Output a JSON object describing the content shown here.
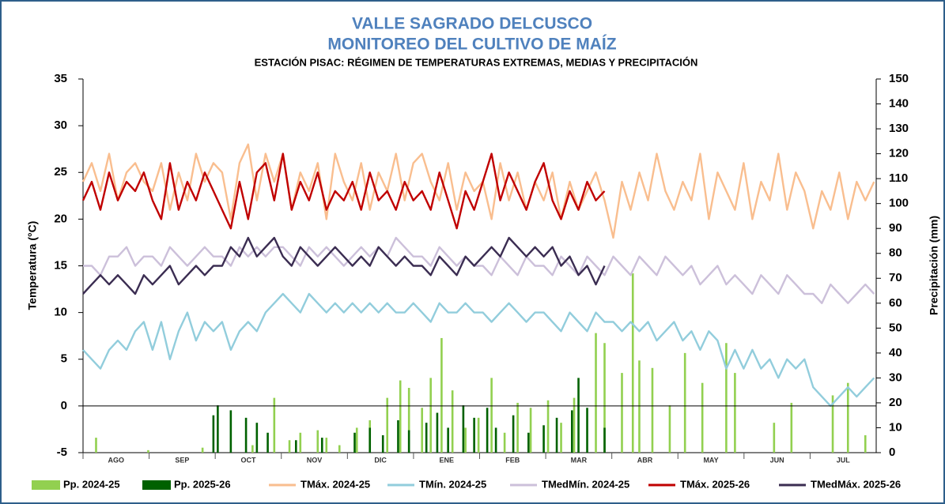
{
  "chart_data": {
    "type": "line",
    "title": "VALLE SAGRADO DELCUSCO",
    "subtitle": "MONITOREO DEL CULTIVO DE MAÍZ",
    "subtitle2": "ESTACIÓN PISAC: RÉGIMEN DE TEMPERATURAS EXTREMAS, MEDIAS Y PRECIPITACIÓN",
    "y_label": "Temperatura (°C)",
    "y2_label": "Precipitación (mm)",
    "categories": [
      "AGO",
      "SEP",
      "OCT",
      "NOV",
      "DIC",
      "ENE",
      "FEB",
      "MAR",
      "ABR",
      "MAY",
      "JUN",
      "JUL"
    ],
    "xlim": [
      0,
      365
    ],
    "ylim": [
      -5,
      35
    ],
    "yticks": [
      -5,
      0,
      5,
      10,
      15,
      20,
      25,
      30,
      35
    ],
    "y2lim": [
      0,
      150
    ],
    "y2ticks": [
      0,
      10,
      20,
      30,
      40,
      50,
      60,
      70,
      80,
      90,
      100,
      110,
      120,
      130,
      140,
      150
    ],
    "zero_line": true,
    "x": [
      0,
      4,
      8,
      12,
      16,
      20,
      24,
      28,
      32,
      36,
      40,
      44,
      48,
      52,
      56,
      60,
      64,
      68,
      72,
      76,
      80,
      84,
      88,
      92,
      96,
      100,
      104,
      108,
      112,
      116,
      120,
      124,
      128,
      132,
      136,
      140,
      144,
      148,
      152,
      156,
      160,
      164,
      168,
      172,
      176,
      180,
      184,
      188,
      192,
      196,
      200,
      204,
      208,
      212,
      216,
      220,
      224,
      228,
      232,
      236,
      240,
      244,
      248,
      252,
      256,
      260,
      264,
      268,
      272,
      276,
      280,
      284,
      288,
      292,
      296,
      300,
      304,
      308,
      312,
      316,
      320,
      324,
      328,
      332,
      336,
      340,
      344,
      348,
      352,
      356,
      360,
      364
    ],
    "series": [
      {
        "name": "Pp. 2024-25",
        "type": "bar",
        "axis": "y2",
        "color": "#92d050",
        "x": [
          6,
          30,
          55,
          78,
          88,
          95,
          100,
          108,
          112,
          118,
          126,
          132,
          140,
          146,
          150,
          156,
          160,
          165,
          170,
          176,
          182,
          188,
          194,
          200,
          206,
          214,
          220,
          226,
          236,
          240,
          248,
          253,
          256,
          262,
          270,
          277,
          285,
          296,
          300,
          318,
          326,
          345,
          352,
          360
        ],
        "values": [
          6,
          1,
          2,
          3,
          22,
          5,
          8,
          9,
          6,
          3,
          10,
          13,
          22,
          29,
          26,
          18,
          30,
          46,
          25,
          10,
          14,
          30,
          8,
          20,
          18,
          21,
          12,
          22,
          48,
          44,
          32,
          72,
          37,
          34,
          19,
          40,
          28,
          44,
          32,
          12,
          20,
          23,
          28,
          7
        ]
      },
      {
        "name": "Pp. 2025-26",
        "type": "bar",
        "axis": "y2",
        "color": "#006100",
        "x": [
          60,
          62,
          68,
          75,
          80,
          85,
          98,
          110,
          125,
          132,
          138,
          145,
          150,
          158,
          163,
          168,
          175,
          180,
          186,
          190,
          198,
          205,
          212,
          218,
          225,
          228,
          232,
          240
        ],
        "values": [
          15,
          19,
          17,
          14,
          12,
          8,
          5,
          6,
          8,
          10,
          7,
          13,
          9,
          12,
          16,
          10,
          19,
          14,
          18,
          10,
          15,
          8,
          11,
          14,
          17,
          30,
          18,
          10
        ]
      },
      {
        "name": "TMáx. 2024-25",
        "color": "#f9be8f",
        "values": [
          24,
          26,
          23,
          27,
          22,
          25,
          26,
          24,
          23,
          26,
          21,
          25,
          22,
          27,
          24,
          26,
          25,
          20,
          26,
          28,
          22,
          27,
          24,
          27,
          21,
          25,
          23,
          26,
          20,
          27,
          24,
          22,
          26,
          21,
          25,
          23,
          27,
          22,
          26,
          27,
          24,
          22,
          26,
          21,
          25,
          23,
          24,
          20,
          26,
          22,
          25,
          21,
          24,
          22,
          25,
          20,
          24,
          21,
          23,
          25,
          22,
          18,
          24,
          21,
          25,
          22,
          27,
          23,
          21,
          24,
          22,
          27,
          20,
          25,
          23,
          21,
          26,
          20,
          24,
          22,
          27,
          21,
          25,
          23,
          19,
          23,
          21,
          25,
          20,
          24,
          22,
          24
        ]
      },
      {
        "name": "TMín. 2024-25",
        "color": "#92cddc",
        "values": [
          6,
          5,
          4,
          6,
          7,
          6,
          8,
          9,
          6,
          9,
          5,
          8,
          10,
          7,
          9,
          8,
          9,
          6,
          8,
          9,
          8,
          10,
          11,
          12,
          11,
          10,
          12,
          11,
          10,
          11,
          10,
          11,
          10,
          11,
          10,
          11,
          10,
          10,
          11,
          10,
          9,
          11,
          10,
          10,
          11,
          10,
          10,
          9,
          10,
          11,
          10,
          9,
          10,
          10,
          9,
          8,
          10,
          9,
          8,
          10,
          9,
          9,
          8,
          9,
          8,
          9,
          7,
          8,
          9,
          7,
          8,
          6,
          8,
          7,
          4,
          6,
          4,
          6,
          4,
          5,
          3,
          5,
          4,
          5,
          2,
          1,
          0,
          1,
          2,
          1,
          2,
          3
        ]
      },
      {
        "name": "TMedMín. 2024-25",
        "color": "#ccc0da",
        "values": [
          15,
          15,
          14,
          16,
          16,
          17,
          15,
          16,
          16,
          15,
          17,
          16,
          15,
          16,
          17,
          16,
          16,
          15,
          17,
          16,
          17,
          16,
          17,
          17,
          16,
          15,
          17,
          16,
          17,
          16,
          15,
          16,
          17,
          16,
          17,
          16,
          18,
          17,
          16,
          16,
          15,
          17,
          16,
          15,
          16,
          15,
          15,
          14,
          16,
          15,
          14,
          16,
          15,
          15,
          14,
          16,
          15,
          14,
          16,
          15,
          14,
          16,
          15,
          14,
          16,
          15,
          14,
          16,
          15,
          14,
          15,
          13,
          14,
          15,
          13,
          14,
          13,
          12,
          14,
          13,
          12,
          14,
          13,
          12,
          12,
          11,
          13,
          12,
          11,
          12,
          13,
          12
        ]
      },
      {
        "name": "TMáx. 2025-26",
        "color": "#c00000",
        "values": [
          22,
          24,
          21,
          25,
          22,
          24,
          23,
          25,
          22,
          20,
          26,
          21,
          24,
          22,
          25,
          23,
          21,
          19,
          24,
          20,
          25,
          26,
          22,
          27,
          21,
          24,
          22,
          25,
          21,
          23,
          22,
          24,
          21,
          25,
          22,
          23,
          21,
          24,
          22,
          23,
          21,
          25,
          22,
          19,
          23,
          21,
          24,
          27,
          22,
          25,
          23,
          21,
          24,
          26,
          22,
          20,
          23,
          21,
          24,
          22,
          23,
          null,
          null,
          null,
          null,
          null,
          null,
          null,
          null,
          null,
          null,
          null,
          null,
          null,
          null,
          null,
          null,
          null,
          null,
          null,
          null,
          null,
          null,
          null,
          null,
          null,
          null,
          null,
          null,
          null,
          null,
          null
        ]
      },
      {
        "name": "TMedMáx. 2025-26",
        "color": "#3b2d52",
        "values": [
          12,
          13,
          14,
          13,
          14,
          13,
          12,
          14,
          13,
          14,
          15,
          13,
          14,
          15,
          14,
          15,
          15,
          17,
          16,
          18,
          16,
          17,
          18,
          16,
          15,
          17,
          16,
          15,
          16,
          17,
          16,
          15,
          16,
          15,
          17,
          16,
          15,
          16,
          15,
          15,
          14,
          16,
          15,
          14,
          16,
          15,
          16,
          17,
          16,
          18,
          17,
          16,
          17,
          16,
          17,
          15,
          16,
          14,
          15,
          13,
          15,
          null,
          null,
          null,
          null,
          null,
          null,
          null,
          null,
          null,
          null,
          null,
          null,
          null,
          null,
          null,
          null,
          null,
          null,
          null,
          null,
          null,
          null,
          null,
          null,
          null,
          null,
          null,
          null,
          null,
          null,
          null
        ]
      }
    ]
  }
}
